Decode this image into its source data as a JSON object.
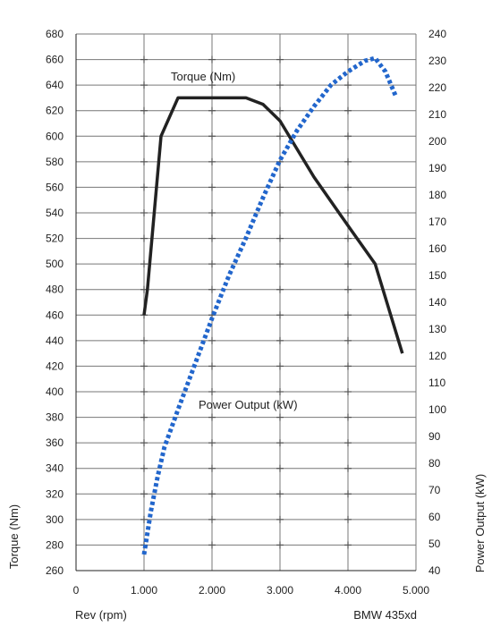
{
  "chart_data": {
    "type": "line",
    "xlabel": "Rev (rpm)",
    "ylabel": "Torque (Nm)",
    "y2label": "Power Output (kW)",
    "note": "BMW 435xd",
    "xlim": [
      0,
      5000
    ],
    "ylim": [
      260,
      680
    ],
    "y2lim": [
      40,
      240
    ],
    "x_ticks": [
      "0",
      "1.000",
      "2.000",
      "3.000",
      "4.000",
      "5.000"
    ],
    "y_ticks": [
      "260",
      "280",
      "300",
      "320",
      "340",
      "360",
      "380",
      "400",
      "420",
      "440",
      "460",
      "480",
      "500",
      "520",
      "540",
      "560",
      "580",
      "600",
      "620",
      "640",
      "660",
      "680"
    ],
    "y2_ticks": [
      "40",
      "50",
      "60",
      "70",
      "80",
      "90",
      "100",
      "110",
      "120",
      "130",
      "140",
      "150",
      "160",
      "170",
      "180",
      "190",
      "200",
      "210",
      "220",
      "230",
      "240"
    ],
    "grid": true,
    "series": [
      {
        "name": "Torque (Nm)",
        "axis": "left",
        "color": "#222222",
        "style": "solid",
        "points": [
          [
            1000,
            460
          ],
          [
            1050,
            480
          ],
          [
            1250,
            600
          ],
          [
            1500,
            630
          ],
          [
            2000,
            630
          ],
          [
            2500,
            630
          ],
          [
            2750,
            625
          ],
          [
            3000,
            612
          ],
          [
            3500,
            568
          ],
          [
            4000,
            530
          ],
          [
            4400,
            500
          ],
          [
            4800,
            430
          ]
        ]
      },
      {
        "name": "Power Output (kW)",
        "axis": "right",
        "color": "#2266cc",
        "style": "dotted",
        "points": [
          [
            1000,
            46
          ],
          [
            1100,
            62
          ],
          [
            1200,
            75
          ],
          [
            1300,
            86
          ],
          [
            1500,
            100
          ],
          [
            1750,
            117
          ],
          [
            2000,
            134
          ],
          [
            2250,
            150
          ],
          [
            2500,
            164
          ],
          [
            2750,
            179
          ],
          [
            3000,
            193
          ],
          [
            3250,
            204
          ],
          [
            3500,
            213
          ],
          [
            3750,
            221
          ],
          [
            4000,
            226
          ],
          [
            4250,
            230
          ],
          [
            4400,
            231
          ],
          [
            4550,
            226
          ],
          [
            4700,
            217
          ]
        ]
      }
    ]
  }
}
